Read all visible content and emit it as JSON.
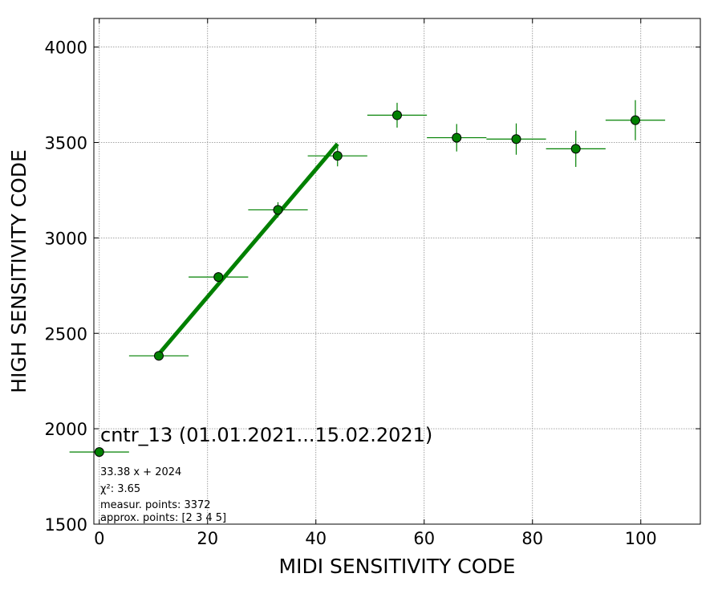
{
  "chart_data": {
    "type": "scatter",
    "title": "cntr_13 (01.01.2021...15.02.2021)",
    "xlabel": "MIDI SENSITIVITY CODE",
    "ylabel": "HIGH SENSITIVITY CODE",
    "xlim": [
      -1,
      111
    ],
    "ylim": [
      1500,
      4150
    ],
    "xticks": [
      0,
      20,
      40,
      60,
      80,
      100
    ],
    "yticks": [
      1500,
      2000,
      2500,
      3000,
      3500,
      4000
    ],
    "grid": true,
    "colors": {
      "marker_fill": "#008000",
      "marker_edge": "#000000",
      "errorbar": "#008000",
      "fit_line": "#008000",
      "grid": "#888888"
    },
    "points": [
      {
        "x": 0,
        "y": 1878,
        "xerr": 5.5,
        "yerr": 0
      },
      {
        "x": 11,
        "y": 2382,
        "xerr": 5.5,
        "yerr": 10
      },
      {
        "x": 22,
        "y": 2795,
        "xerr": 5.5,
        "yerr": 25
      },
      {
        "x": 33,
        "y": 3147,
        "xerr": 5.5,
        "yerr": 40
      },
      {
        "x": 44,
        "y": 3430,
        "xerr": 5.5,
        "yerr": 55
      },
      {
        "x": 55,
        "y": 3643,
        "xerr": 5.5,
        "yerr": 65
      },
      {
        "x": 66,
        "y": 3525,
        "xerr": 5.5,
        "yerr": 72
      },
      {
        "x": 77,
        "y": 3518,
        "xerr": 5.5,
        "yerr": 82
      },
      {
        "x": 88,
        "y": 3467,
        "xerr": 5.5,
        "yerr": 95
      },
      {
        "x": 99,
        "y": 3617,
        "xerr": 5.5,
        "yerr": 105
      }
    ],
    "fit": {
      "slope": 33.38,
      "intercept": 2024,
      "x_range": [
        11,
        44
      ]
    },
    "annotations": {
      "equation": "33.38 x + 2024",
      "chi2": "χ²: 3.65",
      "measur_points": "measur. points: 3372",
      "approx_points": "approx. points: [2 3 4 5]"
    }
  }
}
